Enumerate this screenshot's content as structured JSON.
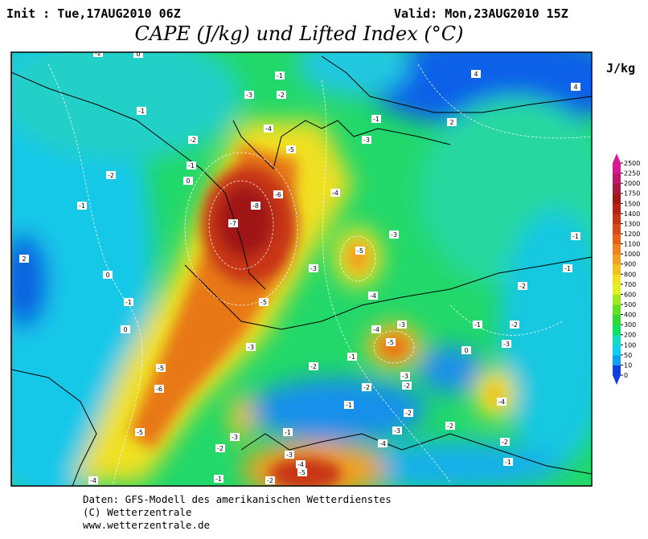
{
  "header": {
    "init": "Init : Tue,17AUG2010 06Z",
    "valid": "Valid: Mon,23AUG2010 15Z",
    "title": "CAPE (J/kg) und Lifted Index (°C)"
  },
  "colorbar": {
    "unit": "J/kg",
    "levels": [
      0,
      10,
      50,
      100,
      200,
      300,
      400,
      500,
      600,
      700,
      800,
      900,
      1000,
      1100,
      1200,
      1300,
      1400,
      1500,
      1750,
      2000,
      2250,
      2500
    ],
    "colors": [
      "#1040e0",
      "#10a0f0",
      "#10d0f0",
      "#10e0c0",
      "#10e060",
      "#30d830",
      "#60e020",
      "#a0e820",
      "#e0f020",
      "#f0e020",
      "#f0c020",
      "#f0a020",
      "#f08020",
      "#e86018",
      "#d84818",
      "#c83418",
      "#b82018",
      "#a01818",
      "#a81840",
      "#c01868",
      "#d81890"
    ]
  },
  "contour_labels": [
    -2,
    0,
    -1,
    -2,
    -3,
    -1,
    -4,
    -2,
    -5,
    -1,
    0,
    -2,
    -1,
    -6,
    -8,
    -7,
    -4,
    -3,
    -5,
    2,
    0,
    -3,
    -4,
    -5,
    -1,
    0,
    -4,
    -3,
    -5,
    -3,
    -1,
    -5,
    -6,
    -2,
    -5,
    -3,
    -4,
    -3,
    -4,
    -5,
    -4,
    -1,
    -2,
    -1,
    -1,
    -2,
    -3,
    0,
    4,
    4,
    2,
    -1,
    -3,
    -1,
    -2,
    -2,
    -2,
    -2,
    -1,
    -3,
    -3,
    -2,
    -4,
    -1,
    -2,
    -1,
    -2
  ],
  "footer": [
    "Daten: GFS-Modell des amerikanischen Wetterdienstes",
    "(C) Wetterzentrale",
    "www.wetterzentrale.de"
  ]
}
